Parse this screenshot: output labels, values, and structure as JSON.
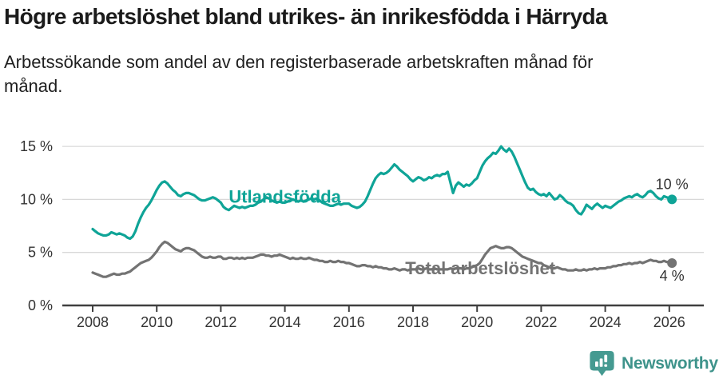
{
  "header": {
    "title": "Högre arbetslöshet bland utrikes- än inrikesfödda i Härryda",
    "subtitle": "Arbetssökande som andel av den registerbaserade arbetskraften månad för månad."
  },
  "chart_data": {
    "type": "line",
    "unit": "%",
    "x_start_year": 2008,
    "points_per_year": 12,
    "x_end": "2026-02",
    "xlim": [
      2007.1,
      2027.1
    ],
    "ylim": [
      0,
      16.7
    ],
    "grid": "horizontal-only",
    "legend": "inline-labels-on-lines",
    "x_ticks": [
      "2008",
      "2010",
      "2012",
      "2014",
      "2016",
      "2018",
      "2020",
      "2022",
      "2024",
      "2026"
    ],
    "y_ticks": [
      {
        "value": 0,
        "label": "0 %"
      },
      {
        "value": 5,
        "label": "5 %"
      },
      {
        "value": 10,
        "label": "10 %"
      },
      {
        "value": 15,
        "label": "15 %"
      }
    ],
    "series": [
      {
        "name": "Utlandsfödda",
        "color": "#0FA497",
        "end_label": "10 %",
        "end_label_side": "above",
        "last_value": 10.0,
        "label_anchor": {
          "year": 2014.0,
          "value": 9.7
        },
        "values": [
          7.2,
          7.0,
          6.8,
          6.7,
          6.6,
          6.6,
          6.7,
          6.9,
          6.8,
          6.7,
          6.8,
          6.7,
          6.6,
          6.4,
          6.3,
          6.5,
          7.0,
          7.7,
          8.3,
          8.8,
          9.2,
          9.5,
          9.9,
          10.4,
          10.9,
          11.3,
          11.6,
          11.7,
          11.5,
          11.2,
          10.9,
          10.7,
          10.4,
          10.3,
          10.5,
          10.6,
          10.6,
          10.5,
          10.4,
          10.2,
          10.0,
          9.9,
          9.9,
          10.0,
          10.1,
          10.2,
          10.1,
          9.9,
          9.7,
          9.3,
          9.1,
          9.0,
          9.2,
          9.4,
          9.3,
          9.2,
          9.3,
          9.2,
          9.3,
          9.4,
          9.4,
          9.5,
          9.7,
          9.8,
          10.0,
          10.2,
          10.1,
          9.9,
          9.8,
          9.7,
          9.8,
          9.7,
          9.7,
          9.8,
          9.9,
          10.0,
          9.9,
          9.8,
          9.9,
          9.8,
          9.9,
          10.0,
          10.1,
          10.0,
          10.1,
          9.9,
          9.7,
          9.6,
          9.5,
          9.4,
          9.4,
          9.5,
          9.6,
          9.5,
          9.6,
          9.6,
          9.6,
          9.4,
          9.3,
          9.2,
          9.3,
          9.5,
          9.8,
          10.3,
          10.9,
          11.5,
          12.0,
          12.3,
          12.5,
          12.4,
          12.5,
          12.7,
          13.0,
          13.3,
          13.1,
          12.8,
          12.6,
          12.4,
          12.2,
          11.9,
          11.7,
          11.9,
          12.1,
          12.0,
          11.8,
          11.9,
          12.1,
          12.0,
          12.2,
          12.3,
          12.2,
          12.4,
          12.4,
          12.6,
          11.6,
          10.6,
          11.3,
          11.6,
          11.4,
          11.2,
          11.4,
          11.3,
          11.5,
          11.8,
          12.0,
          12.6,
          13.2,
          13.6,
          13.9,
          14.1,
          14.4,
          14.3,
          14.6,
          15.0,
          14.7,
          14.5,
          14.8,
          14.5,
          14.0,
          13.4,
          12.8,
          12.2,
          11.6,
          11.1,
          10.9,
          11.0,
          10.7,
          10.5,
          10.4,
          10.5,
          10.3,
          10.6,
          10.3,
          10.0,
          10.1,
          10.4,
          10.2,
          9.9,
          9.7,
          9.6,
          9.4,
          9.0,
          8.7,
          8.6,
          9.0,
          9.5,
          9.3,
          9.1,
          9.4,
          9.6,
          9.4,
          9.2,
          9.4,
          9.3,
          9.2,
          9.4,
          9.6,
          9.8,
          9.9,
          10.1,
          10.2,
          10.3,
          10.2,
          10.4,
          10.5,
          10.3,
          10.2,
          10.4,
          10.7,
          10.8,
          10.6,
          10.3,
          10.1,
          10.0,
          10.3,
          10.2,
          10.1,
          10.0
        ]
      },
      {
        "name": "Total arbetslöshet",
        "color": "#737373",
        "end_label": "4 %",
        "end_label_side": "below",
        "last_value": 4.0,
        "label_anchor": {
          "year": 2020.1,
          "value": 2.95
        },
        "values": [
          3.1,
          3.0,
          2.9,
          2.8,
          2.7,
          2.7,
          2.8,
          2.9,
          3.0,
          2.9,
          2.9,
          3.0,
          3.0,
          3.1,
          3.2,
          3.4,
          3.6,
          3.8,
          4.0,
          4.1,
          4.2,
          4.3,
          4.5,
          4.8,
          5.1,
          5.5,
          5.8,
          6.0,
          5.9,
          5.7,
          5.5,
          5.3,
          5.2,
          5.1,
          5.3,
          5.4,
          5.4,
          5.3,
          5.2,
          5.0,
          4.8,
          4.6,
          4.5,
          4.5,
          4.6,
          4.5,
          4.5,
          4.6,
          4.6,
          4.4,
          4.4,
          4.5,
          4.5,
          4.4,
          4.5,
          4.4,
          4.5,
          4.4,
          4.5,
          4.5,
          4.5,
          4.6,
          4.7,
          4.8,
          4.8,
          4.7,
          4.7,
          4.6,
          4.7,
          4.7,
          4.8,
          4.7,
          4.6,
          4.5,
          4.4,
          4.5,
          4.4,
          4.4,
          4.5,
          4.4,
          4.4,
          4.5,
          4.4,
          4.3,
          4.3,
          4.2,
          4.2,
          4.1,
          4.1,
          4.2,
          4.1,
          4.1,
          4.2,
          4.1,
          4.1,
          4.0,
          4.0,
          3.9,
          3.8,
          3.7,
          3.7,
          3.8,
          3.8,
          3.7,
          3.7,
          3.6,
          3.7,
          3.6,
          3.6,
          3.5,
          3.5,
          3.4,
          3.4,
          3.5,
          3.4,
          3.3,
          3.4,
          3.4,
          3.3,
          3.4,
          3.4,
          3.4,
          3.5,
          3.4,
          3.4,
          3.5,
          3.4,
          3.4,
          3.5,
          3.4,
          3.4,
          3.4,
          3.4,
          3.4,
          3.5,
          3.4,
          3.5,
          3.5,
          3.5,
          3.4,
          3.5,
          3.5,
          3.6,
          3.7,
          3.8,
          4.0,
          4.4,
          4.8,
          5.1,
          5.4,
          5.5,
          5.6,
          5.5,
          5.4,
          5.4,
          5.5,
          5.5,
          5.4,
          5.2,
          5.0,
          4.8,
          4.6,
          4.5,
          4.4,
          4.3,
          4.2,
          4.1,
          4.0,
          4.0,
          3.8,
          3.7,
          3.6,
          3.5,
          3.5,
          3.6,
          3.5,
          3.4,
          3.4,
          3.3,
          3.3,
          3.3,
          3.4,
          3.3,
          3.3,
          3.4,
          3.3,
          3.4,
          3.4,
          3.5,
          3.4,
          3.5,
          3.5,
          3.5,
          3.6,
          3.6,
          3.7,
          3.7,
          3.8,
          3.8,
          3.9,
          3.9,
          4.0,
          3.9,
          4.0,
          4.0,
          4.1,
          4.0,
          4.1,
          4.2,
          4.3,
          4.2,
          4.2,
          4.1,
          4.1,
          4.2,
          4.1,
          4.1,
          4.0
        ]
      }
    ]
  },
  "footer": {
    "brand": "Newsworthy",
    "brand_color": "#3E938B",
    "logo_color": "#459A91",
    "logo_icon": "chart-speech-bubble-icon"
  }
}
